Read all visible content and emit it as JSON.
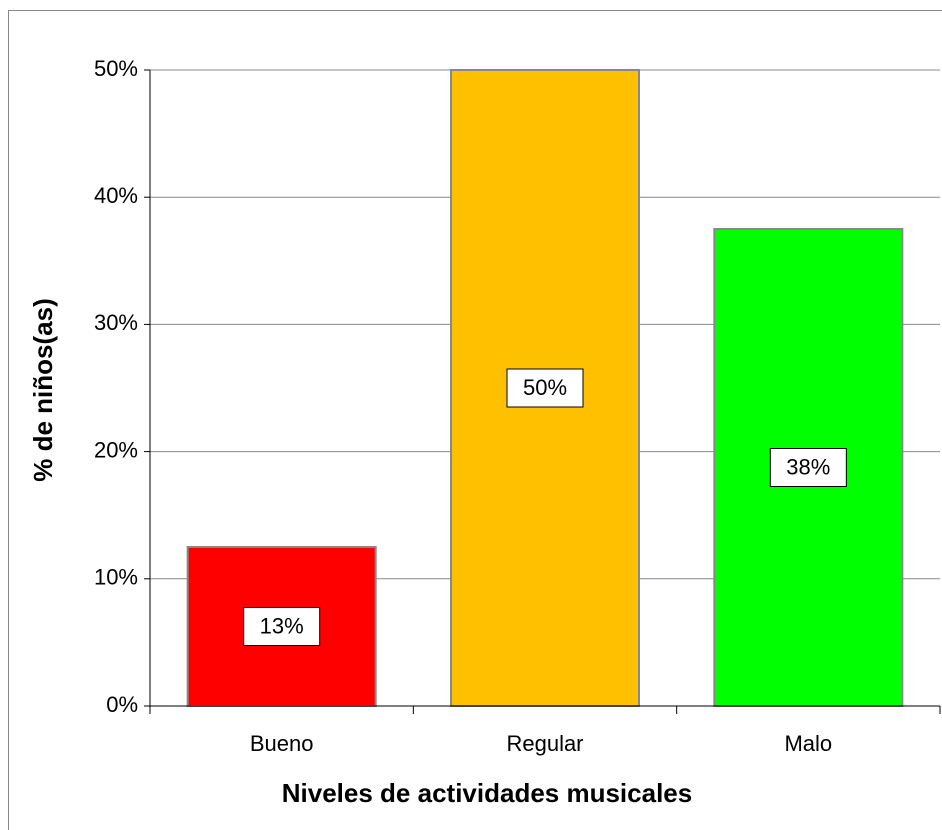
{
  "chart_data": {
    "type": "bar",
    "x_label": "Niveles de actividades musicales",
    "y_label": "%  de niños(as)",
    "categories": [
      "Bueno",
      "Regular",
      "Malo"
    ],
    "values": [
      12.5,
      50,
      37.5
    ],
    "value_labels": [
      "13%",
      "50%",
      "38%"
    ],
    "colors": [
      "#ff0000",
      "#ffc000",
      "#00ff00"
    ],
    "ylim": [
      0,
      50
    ],
    "yticks": [
      {
        "value": 0,
        "label": "0%"
      },
      {
        "value": 10,
        "label": "10%"
      },
      {
        "value": 20,
        "label": "20%"
      },
      {
        "value": 30,
        "label": "30%"
      },
      {
        "value": 40,
        "label": "40%"
      },
      {
        "value": 50,
        "label": "50%"
      }
    ],
    "grid": true
  }
}
